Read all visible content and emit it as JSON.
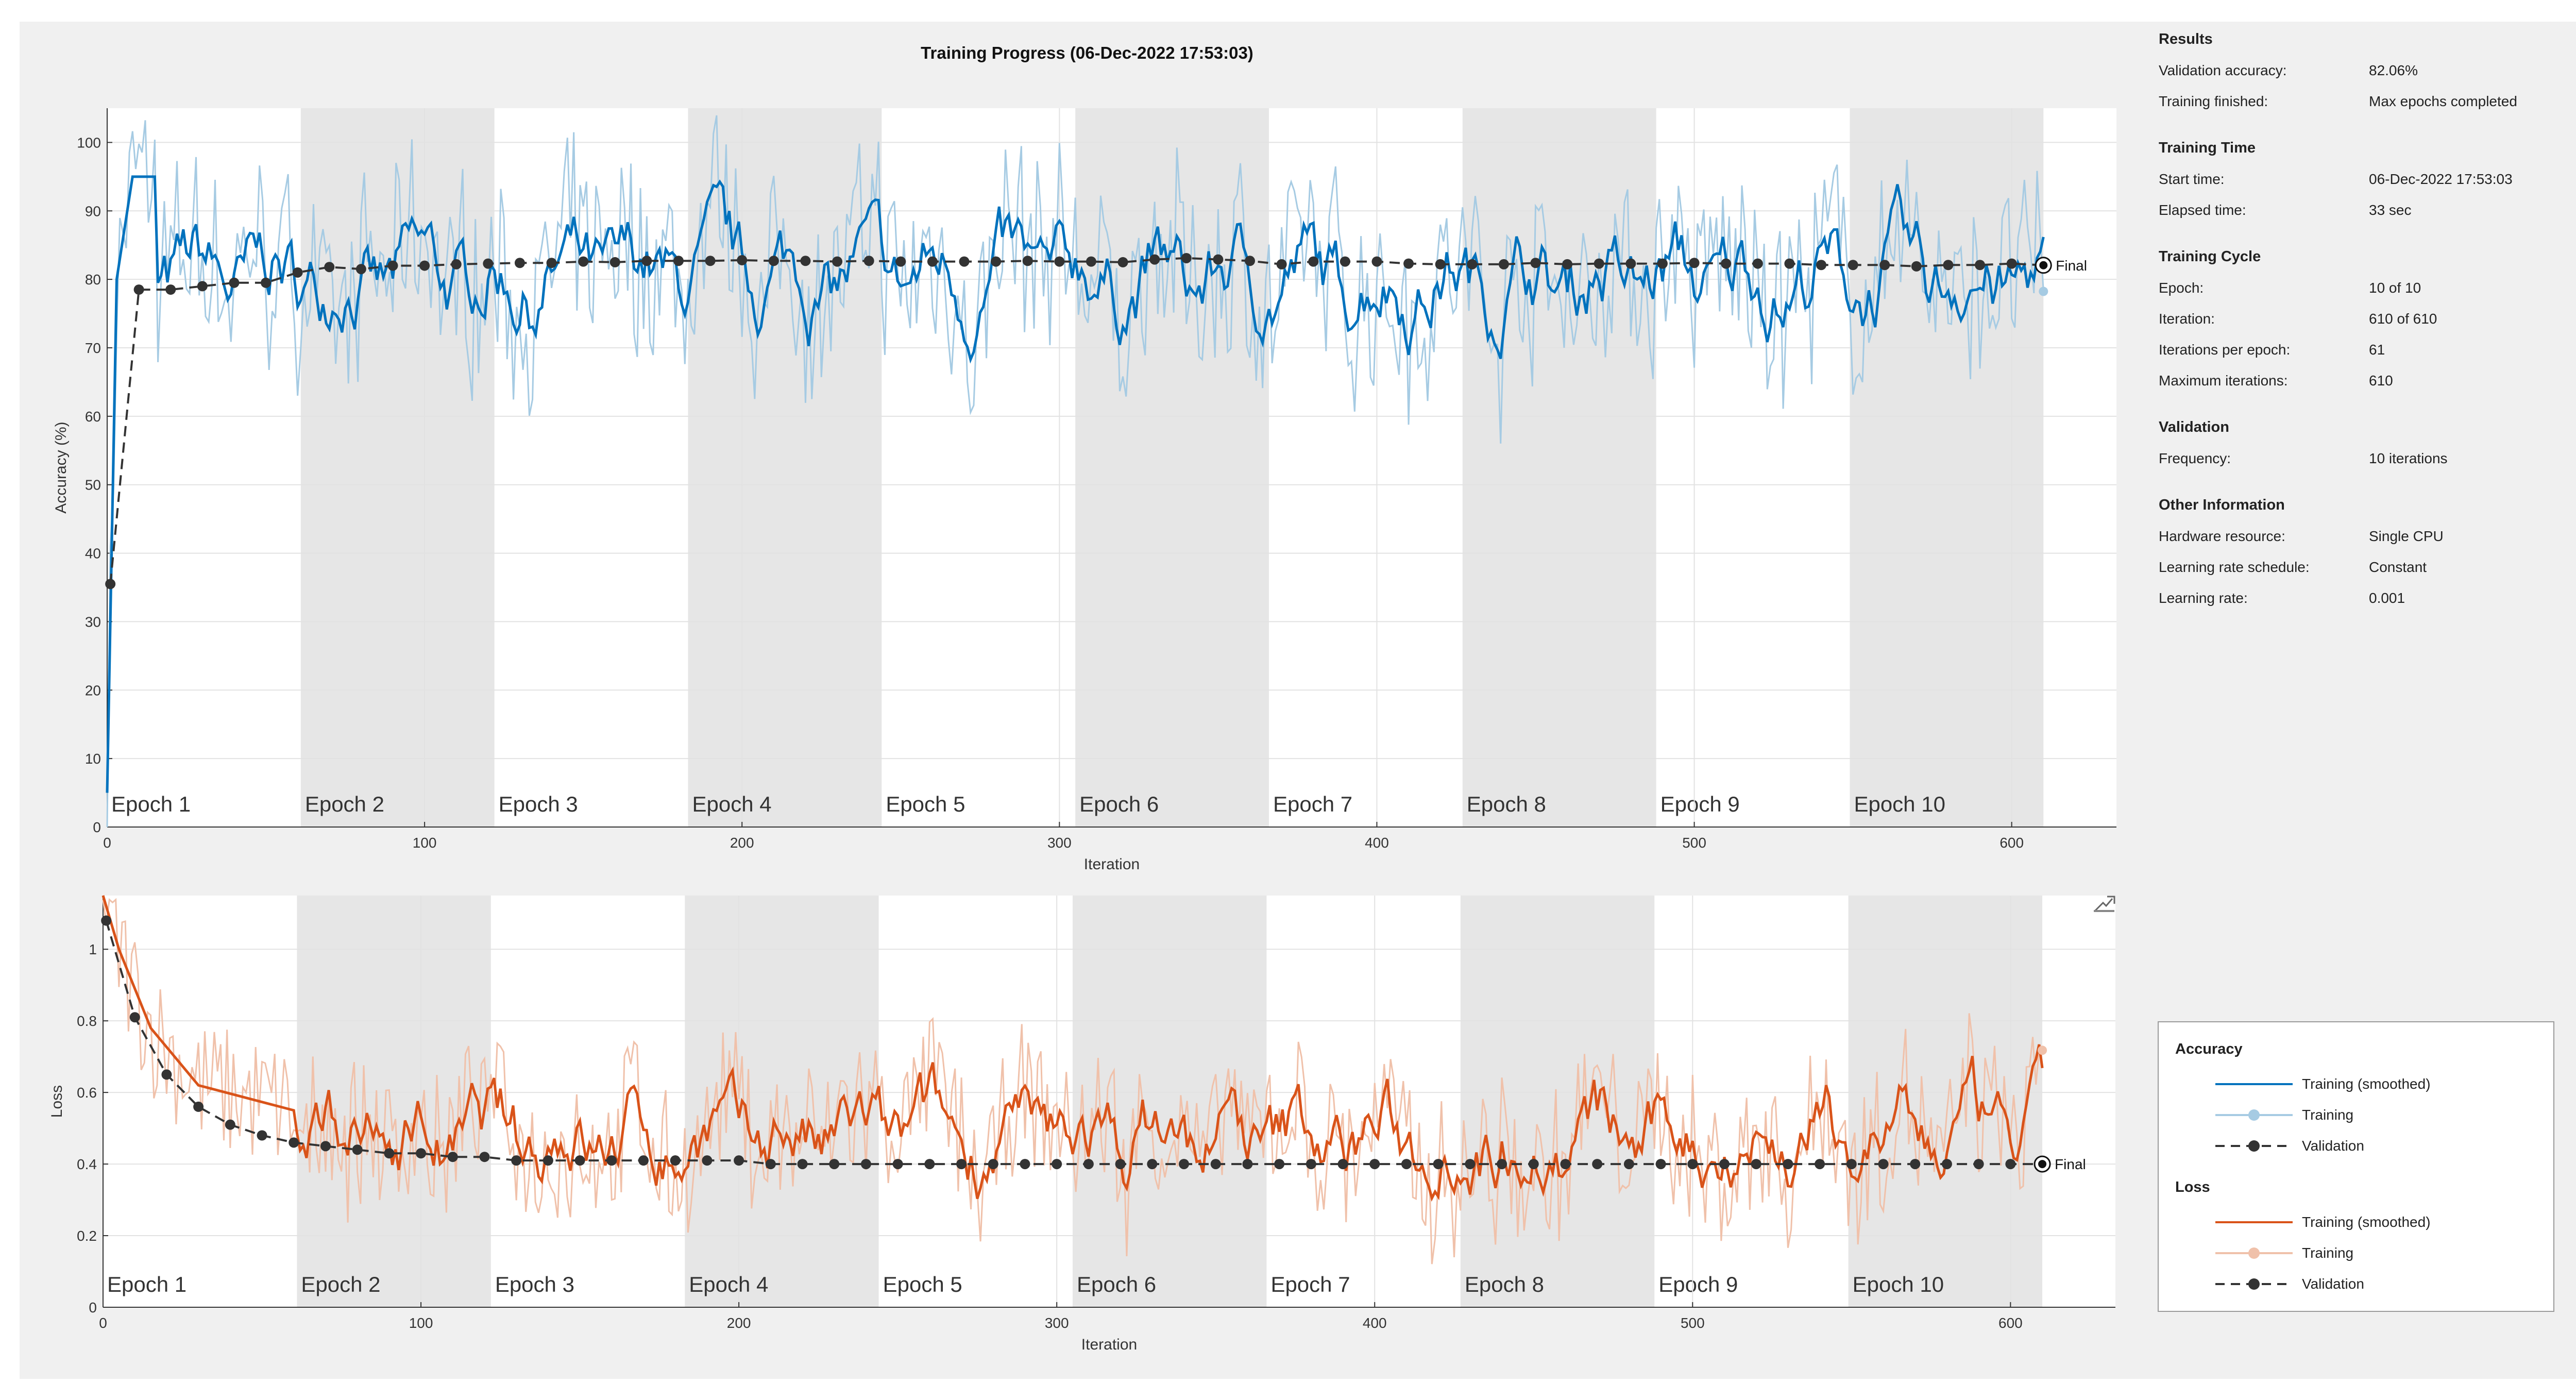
{
  "window": {
    "title": "Training Progress (06-Dec-2022 17:53:03)"
  },
  "colors": {
    "acc_smoothed": "#0072bd",
    "acc_raw": "#a6cbe3",
    "loss_smoothed": "#d95319",
    "loss_raw": "#f0c1aa",
    "validation": "#333333",
    "epoch_shade": "#e6e6e6",
    "background": "#f0f0f0"
  },
  "results": {
    "heading": "Results",
    "rows": [
      {
        "label": "Validation accuracy:",
        "value": "82.06%"
      },
      {
        "label": "Training finished:",
        "value": "Max epochs completed"
      }
    ]
  },
  "training_time": {
    "heading": "Training Time",
    "rows": [
      {
        "label": "Start time:",
        "value": "06-Dec-2022 17:53:03"
      },
      {
        "label": "Elapsed time:",
        "value": "33 sec"
      }
    ]
  },
  "training_cycle": {
    "heading": "Training Cycle",
    "rows": [
      {
        "label": "Epoch:",
        "value": "10 of 10"
      },
      {
        "label": "Iteration:",
        "value": "610 of 610"
      },
      {
        "label": "Iterations per epoch:",
        "value": "61"
      },
      {
        "label": "Maximum iterations:",
        "value": "610"
      }
    ]
  },
  "validation": {
    "heading": "Validation",
    "rows": [
      {
        "label": "Frequency:",
        "value": "10 iterations"
      }
    ]
  },
  "other_info": {
    "heading": "Other Information",
    "rows": [
      {
        "label": "Hardware resource:",
        "value": "Single CPU"
      },
      {
        "label": "Learning rate schedule:",
        "value": "Constant"
      },
      {
        "label": "Learning rate:",
        "value": "0.001"
      }
    ]
  },
  "legend": {
    "accuracy_heading": "Accuracy",
    "loss_heading": "Loss",
    "training_smoothed": "Training (smoothed)",
    "training": "Training",
    "validation": "Validation"
  },
  "chart_data": [
    {
      "type": "line",
      "title": "Training Progress (06-Dec-2022 17:53:03)",
      "xlabel": "Iteration",
      "ylabel": "Accuracy (%)",
      "xlim": [
        0,
        633
      ],
      "ylim": [
        0,
        105
      ],
      "xticks": [
        0,
        100,
        200,
        300,
        400,
        500,
        600
      ],
      "yticks": [
        0,
        10,
        20,
        30,
        40,
        50,
        60,
        70,
        80,
        90,
        100
      ],
      "epoch_labels": [
        "Epoch 1",
        "Epoch 2",
        "Epoch 3",
        "Epoch 4",
        "Epoch 5",
        "Epoch 6",
        "Epoch 7",
        "Epoch 8",
        "Epoch 9",
        "Epoch 10"
      ],
      "iterations_per_epoch": 61,
      "final_label": "Final",
      "smoothed_base": 80,
      "smoothed_amplitude": 5,
      "series": [
        {
          "name": "Validation",
          "x": [
            1,
            10,
            20,
            30,
            40,
            50,
            60,
            70,
            80,
            90,
            100,
            110,
            120,
            130,
            140,
            150,
            160,
            170,
            180,
            190,
            200,
            210,
            220,
            230,
            240,
            250,
            260,
            270,
            280,
            290,
            300,
            310,
            320,
            330,
            340,
            350,
            360,
            370,
            380,
            390,
            400,
            410,
            420,
            430,
            440,
            450,
            460,
            470,
            480,
            490,
            500,
            510,
            520,
            530,
            540,
            550,
            560,
            570,
            580,
            590,
            600,
            610
          ],
          "values": [
            35.5,
            78.5,
            78.5,
            79,
            79.5,
            79.5,
            81,
            81.8,
            81.5,
            82,
            82,
            82.2,
            82.3,
            82.4,
            82.4,
            82.6,
            82.5,
            82.7,
            82.7,
            82.7,
            82.8,
            82.7,
            82.7,
            82.6,
            82.7,
            82.6,
            82.6,
            82.6,
            82.6,
            82.7,
            82.6,
            82.6,
            82.5,
            82.9,
            83.1,
            82.9,
            82.7,
            82.2,
            82.6,
            82.6,
            82.6,
            82.3,
            82.2,
            82.2,
            82.2,
            82.4,
            82.2,
            82.3,
            82.3,
            82.3,
            82.4,
            82.3,
            82.3,
            82.3,
            82.1,
            82.1,
            82.1,
            81.9,
            82.1,
            82.1,
            82.3,
            82.06
          ]
        },
        {
          "name": "Training (smoothed) start",
          "x": [
            0,
            3,
            8,
            15
          ],
          "values": [
            5,
            80,
            95,
            95
          ]
        }
      ]
    },
    {
      "type": "line",
      "xlabel": "Iteration",
      "ylabel": "Loss",
      "xlim": [
        0,
        633
      ],
      "ylim": [
        0,
        1.15
      ],
      "xticks": [
        0,
        100,
        200,
        300,
        400,
        500,
        600
      ],
      "yticks": [
        0,
        0.2,
        0.4,
        0.6,
        0.8,
        1
      ],
      "epoch_labels": [
        "Epoch 1",
        "Epoch 2",
        "Epoch 3",
        "Epoch 4",
        "Epoch 5",
        "Epoch 6",
        "Epoch 7",
        "Epoch 8",
        "Epoch 9",
        "Epoch 10"
      ],
      "iterations_per_epoch": 61,
      "final_label": "Final",
      "smoothed_base": 0.47,
      "smoothed_amplitude": 0.09,
      "series": [
        {
          "name": "Validation",
          "x": [
            1,
            10,
            20,
            30,
            40,
            50,
            60,
            70,
            80,
            90,
            100,
            110,
            120,
            130,
            140,
            150,
            160,
            170,
            180,
            190,
            200,
            210,
            220,
            230,
            240,
            250,
            260,
            270,
            280,
            290,
            300,
            310,
            320,
            330,
            340,
            350,
            360,
            370,
            380,
            390,
            400,
            410,
            420,
            430,
            440,
            450,
            460,
            470,
            480,
            490,
            500,
            510,
            520,
            530,
            540,
            550,
            560,
            570,
            580,
            590,
            600,
            610
          ],
          "values": [
            1.08,
            0.81,
            0.65,
            0.56,
            0.51,
            0.48,
            0.46,
            0.45,
            0.44,
            0.43,
            0.43,
            0.42,
            0.42,
            0.41,
            0.41,
            0.41,
            0.41,
            0.41,
            0.41,
            0.41,
            0.41,
            0.4,
            0.4,
            0.4,
            0.4,
            0.4,
            0.4,
            0.4,
            0.4,
            0.4,
            0.4,
            0.4,
            0.4,
            0.4,
            0.4,
            0.4,
            0.4,
            0.4,
            0.4,
            0.4,
            0.4,
            0.4,
            0.4,
            0.4,
            0.4,
            0.4,
            0.4,
            0.4,
            0.4,
            0.4,
            0.4,
            0.4,
            0.4,
            0.4,
            0.4,
            0.4,
            0.4,
            0.4,
            0.4,
            0.4,
            0.4,
            0.4
          ]
        },
        {
          "name": "Training (smoothed) start",
          "x": [
            0,
            5,
            15,
            30,
            60
          ],
          "values": [
            1.15,
            1.0,
            0.78,
            0.62,
            0.55
          ]
        }
      ]
    }
  ]
}
